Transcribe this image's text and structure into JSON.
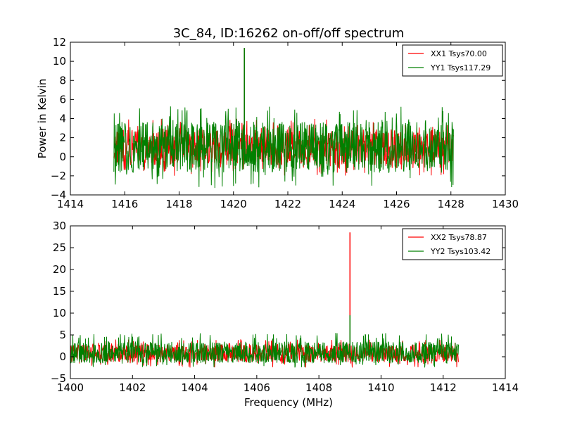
{
  "figure": {
    "title": "3C_84, ID:16262 on-off/off spectrum",
    "xlabel": "Frequency (MHz)"
  },
  "chart_data": [
    {
      "type": "line",
      "title": "3C_84, ID:16262 on-off/off spectrum",
      "xlabel": "",
      "ylabel": "Power in Kelvin",
      "xlim": [
        1414,
        1430
      ],
      "ylim": [
        -4,
        12
      ],
      "xticks": [
        1414,
        1416,
        1418,
        1420,
        1422,
        1424,
        1426,
        1428,
        1430
      ],
      "yticks": [
        -4,
        -2,
        0,
        2,
        4,
        6,
        8,
        10,
        12
      ],
      "grid": false,
      "legend_position": "top-right",
      "series": [
        {
          "name": "XX1 Tsys70.00",
          "color": "#ff0000",
          "x_start": 1415.6,
          "x_end": 1428.1,
          "baseline": 1.0,
          "noise_min": -2.0,
          "noise_max": 4.0,
          "peaks": [
            {
              "x": 1420.4,
              "y": 11.4
            }
          ]
        },
        {
          "name": "YY1 Tsys117.29",
          "color": "#008000",
          "x_start": 1415.6,
          "x_end": 1428.1,
          "baseline": 1.0,
          "noise_min": -3.3,
          "noise_max": 5.3,
          "peaks": [
            {
              "x": 1420.4,
              "y": 11.4
            }
          ]
        }
      ]
    },
    {
      "type": "line",
      "title": "",
      "xlabel": "Frequency (MHz)",
      "ylabel": "",
      "xlim": [
        1400,
        1414
      ],
      "ylim": [
        -5,
        30
      ],
      "xticks": [
        1400,
        1402,
        1404,
        1406,
        1408,
        1410,
        1412,
        1414
      ],
      "yticks": [
        -5,
        0,
        5,
        10,
        15,
        20,
        25,
        30
      ],
      "grid": false,
      "legend_position": "top-right",
      "series": [
        {
          "name": "XX2 Tsys78.87",
          "color": "#ff0000",
          "x_start": 1400.0,
          "x_end": 1412.5,
          "baseline": 0.8,
          "noise_min": -2.5,
          "noise_max": 4.0,
          "peaks": [
            {
              "x": 1409.0,
              "y": 28.5
            }
          ]
        },
        {
          "name": "YY2 Tsys103.42",
          "color": "#008000",
          "x_start": 1400.0,
          "x_end": 1412.5,
          "baseline": 1.0,
          "noise_min": -2.5,
          "noise_max": 5.5,
          "peaks": [
            {
              "x": 1409.0,
              "y": 9.5
            }
          ]
        }
      ]
    }
  ]
}
